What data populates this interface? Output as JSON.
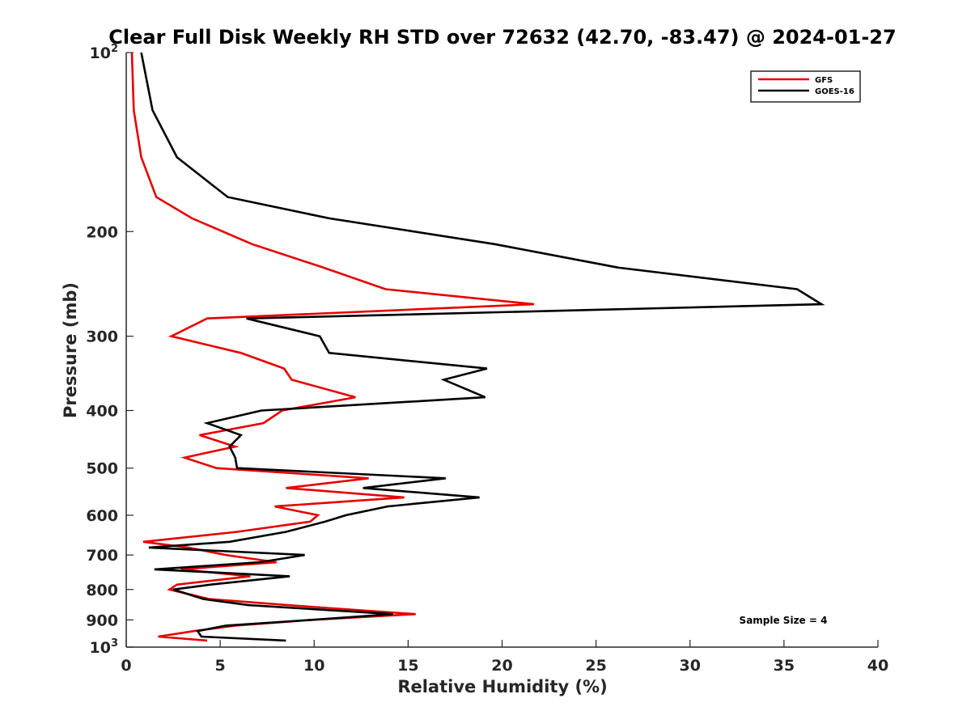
{
  "chart_data": {
    "type": "line",
    "title": "Clear Full Disk Weekly RH STD over 72632 (42.70, -83.47) @ 2024-01-27",
    "xlabel": "Relative Humidity (%)",
    "ylabel": "Pressure (mb)",
    "xlim": [
      0,
      40
    ],
    "ylim": [
      100,
      1000
    ],
    "yscale": "log",
    "y_reversed": true,
    "grid": false,
    "legend_position": "top-right",
    "x_ticks": [
      "0",
      "5",
      "10",
      "15",
      "20",
      "25",
      "30",
      "35",
      "40"
    ],
    "y_ticks": [
      {
        "value": 100,
        "base": "10",
        "exp": "2"
      },
      {
        "value": 200,
        "label": "200"
      },
      {
        "value": 300,
        "label": "300"
      },
      {
        "value": 400,
        "label": "400"
      },
      {
        "value": 500,
        "label": "500"
      },
      {
        "value": 600,
        "label": "600"
      },
      {
        "value": 700,
        "label": "700"
      },
      {
        "value": 800,
        "label": "800"
      },
      {
        "value": 900,
        "label": "900"
      },
      {
        "value": 1000,
        "base": "10",
        "exp": "3"
      }
    ],
    "series": [
      {
        "name": "GFS",
        "color": "#e60000",
        "points": [
          [
            0.3,
            100
          ],
          [
            0.4,
            125
          ],
          [
            0.8,
            150
          ],
          [
            1.6,
            175
          ],
          [
            3.5,
            190
          ],
          [
            6.7,
            210
          ],
          [
            10.5,
            230
          ],
          [
            13.8,
            250
          ],
          [
            21.7,
            265
          ],
          [
            4.3,
            280
          ],
          [
            2.4,
            300
          ],
          [
            6.1,
            320
          ],
          [
            8.4,
            340
          ],
          [
            8.8,
            355
          ],
          [
            12.2,
            380
          ],
          [
            8.3,
            400
          ],
          [
            7.3,
            420
          ],
          [
            3.9,
            440
          ],
          [
            5.8,
            460
          ],
          [
            3.1,
            480
          ],
          [
            4.8,
            500
          ],
          [
            12.9,
            520
          ],
          [
            8.5,
            540
          ],
          [
            14.8,
            560
          ],
          [
            7.9,
            580
          ],
          [
            10.2,
            600
          ],
          [
            9.8,
            615
          ],
          [
            5.9,
            640
          ],
          [
            0.9,
            665
          ],
          [
            3.3,
            680
          ],
          [
            5.3,
            700
          ],
          [
            8.0,
            720
          ],
          [
            2.9,
            740
          ],
          [
            6.6,
            760
          ],
          [
            2.7,
            785
          ],
          [
            2.3,
            800
          ],
          [
            4.4,
            830
          ],
          [
            8.6,
            850
          ],
          [
            15.4,
            880
          ],
          [
            9.8,
            900
          ],
          [
            5.8,
            920
          ],
          [
            3.6,
            940
          ],
          [
            1.7,
            960
          ],
          [
            4.3,
            975
          ]
        ]
      },
      {
        "name": "GOES-16",
        "color": "#000000",
        "points": [
          [
            0.8,
            100
          ],
          [
            1.4,
            125
          ],
          [
            2.7,
            150
          ],
          [
            5.4,
            175
          ],
          [
            10.8,
            190
          ],
          [
            19.6,
            210
          ],
          [
            26.2,
            230
          ],
          [
            35.7,
            250
          ],
          [
            37.0,
            265
          ],
          [
            6.4,
            280
          ],
          [
            10.3,
            300
          ],
          [
            10.8,
            320
          ],
          [
            19.2,
            340
          ],
          [
            16.9,
            355
          ],
          [
            19.1,
            380
          ],
          [
            7.2,
            400
          ],
          [
            4.3,
            420
          ],
          [
            6.1,
            440
          ],
          [
            5.5,
            460
          ],
          [
            5.8,
            480
          ],
          [
            5.9,
            500
          ],
          [
            17.0,
            520
          ],
          [
            12.6,
            540
          ],
          [
            18.8,
            560
          ],
          [
            13.9,
            580
          ],
          [
            11.7,
            600
          ],
          [
            10.6,
            615
          ],
          [
            8.5,
            640
          ],
          [
            5.5,
            665
          ],
          [
            1.2,
            680
          ],
          [
            9.5,
            700
          ],
          [
            7.1,
            720
          ],
          [
            1.5,
            740
          ],
          [
            8.7,
            760
          ],
          [
            4.5,
            785
          ],
          [
            2.5,
            800
          ],
          [
            4.1,
            830
          ],
          [
            6.5,
            850
          ],
          [
            14.2,
            880
          ],
          [
            9.8,
            900
          ],
          [
            5.3,
            920
          ],
          [
            3.8,
            940
          ],
          [
            4.0,
            960
          ],
          [
            8.5,
            975
          ]
        ]
      }
    ],
    "annotation": "Sample Size = 4"
  }
}
